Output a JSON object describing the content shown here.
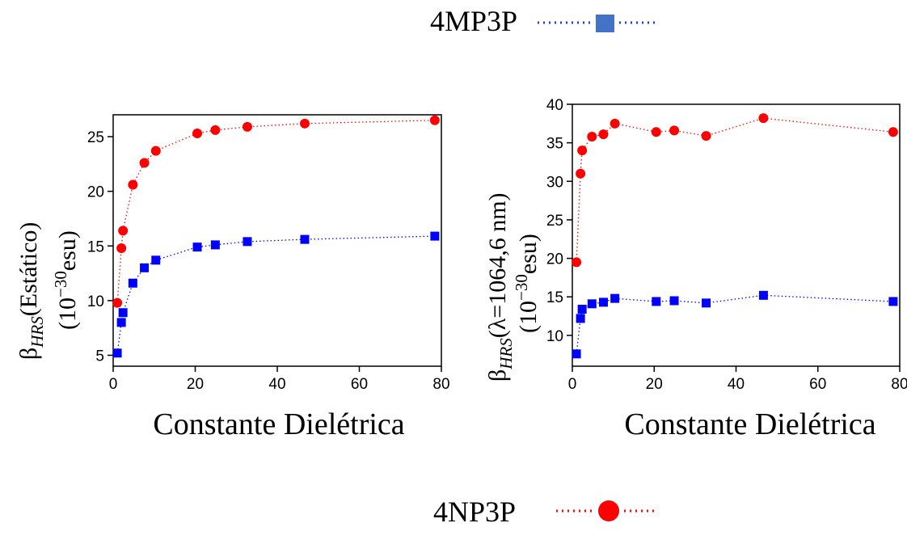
{
  "legend": {
    "top": {
      "label": "4MP3P",
      "color": "#1f3fe0",
      "marker": "square",
      "icon_color": "#4472c4"
    },
    "bottom": {
      "label": "4NP3P",
      "color": "#ff0000",
      "marker": "circle"
    }
  },
  "chart_data": [
    {
      "type": "scatter",
      "xlabel": "Constante Dielétrica",
      "ylabel": {
        "line1_main": "β",
        "line1_sub": "HRS",
        "line1_rest": "(Estático)",
        "line2_pre": "(10",
        "line2_sup": "−30",
        "line2_post": "esu)"
      },
      "xlim": [
        0,
        80
      ],
      "ylim": [
        4,
        27
      ],
      "xticks": [
        0,
        20,
        40,
        60,
        80
      ],
      "yticks": [
        5,
        10,
        15,
        20,
        25
      ],
      "grid": false,
      "series": [
        {
          "name": "4MP3P",
          "color": "#0000ff",
          "marker": "square",
          "line": "dotted",
          "x": [
            1.0,
            2.0,
            2.4,
            4.8,
            7.6,
            10.4,
            20.5,
            24.9,
            32.7,
            46.7,
            78.4
          ],
          "y": [
            5.2,
            8.0,
            8.9,
            11.6,
            13.0,
            13.7,
            14.9,
            15.1,
            15.4,
            15.6,
            15.9
          ]
        },
        {
          "name": "4NP3P",
          "color": "#ff0000",
          "marker": "circle",
          "line": "dotted",
          "x": [
            1.0,
            2.0,
            2.4,
            4.8,
            7.6,
            10.4,
            20.5,
            24.9,
            32.7,
            46.7,
            78.4
          ],
          "y": [
            9.8,
            14.8,
            16.4,
            20.6,
            22.6,
            23.7,
            25.3,
            25.6,
            25.9,
            26.2,
            26.5
          ]
        }
      ]
    },
    {
      "type": "scatter",
      "xlabel": "Constante Dielétrica",
      "ylabel": {
        "line1_main": "β",
        "line1_sub": "HRS",
        "line1_rest": "(λ=1064,6 nm)",
        "line2_pre": "(10",
        "line2_sup": "−30",
        "line2_post": "esu)"
      },
      "xlim": [
        0,
        80
      ],
      "ylim": [
        6,
        40
      ],
      "xticks": [
        0,
        20,
        40,
        60,
        80
      ],
      "yticks": [
        10,
        15,
        20,
        25,
        30,
        35,
        40
      ],
      "grid": false,
      "series": [
        {
          "name": "4MP3P",
          "color": "#0000ff",
          "marker": "square",
          "line": "dotted",
          "x": [
            1.0,
            2.0,
            2.4,
            4.8,
            7.6,
            10.4,
            20.5,
            24.9,
            32.7,
            46.7,
            78.4
          ],
          "y": [
            7.6,
            12.2,
            13.4,
            14.1,
            14.3,
            14.8,
            14.4,
            14.5,
            14.2,
            15.2,
            14.4
          ]
        },
        {
          "name": "4NP3P",
          "color": "#ff0000",
          "marker": "circle",
          "line": "dotted",
          "x": [
            1.0,
            2.0,
            2.4,
            4.8,
            7.6,
            10.4,
            20.5,
            24.9,
            32.7,
            46.7,
            78.4
          ],
          "y": [
            19.5,
            31.0,
            34.0,
            35.8,
            36.1,
            37.5,
            36.4,
            36.6,
            35.9,
            38.2,
            36.4
          ]
        }
      ]
    }
  ]
}
